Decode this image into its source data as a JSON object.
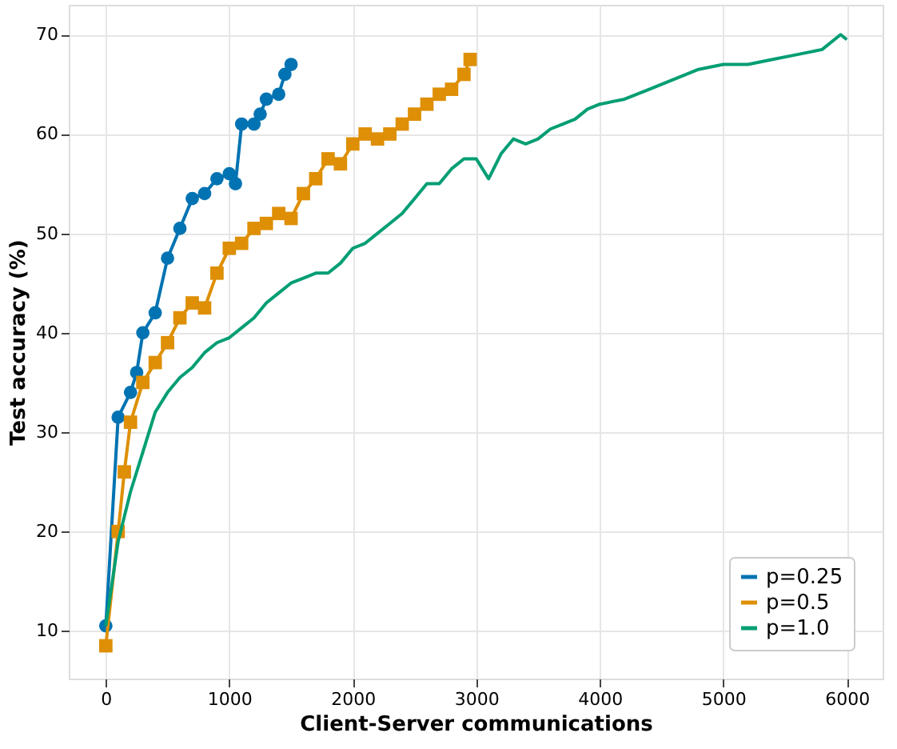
{
  "chart_data": {
    "type": "line",
    "xlabel": "Client-Server communications",
    "ylabel": "Test accuracy (%)",
    "xlim": [
      -300,
      6290
    ],
    "ylim": [
      5.2,
      73
    ],
    "xticks": [
      0,
      1000,
      2000,
      3000,
      4000,
      5000,
      6000
    ],
    "yticks": [
      10,
      20,
      30,
      40,
      50,
      60,
      70
    ],
    "grid": true,
    "legend": "bottom right",
    "series": [
      {
        "name": "p=0.25",
        "color": "#0173b2",
        "marker": "circle",
        "x": [
          0,
          100,
          200,
          250,
          300,
          400,
          500,
          600,
          700,
          800,
          900,
          1000,
          1050,
          1100,
          1200,
          1250,
          1300,
          1400,
          1450,
          1500
        ],
        "values": [
          10.5,
          31.5,
          34,
          36,
          40,
          42,
          47.5,
          50.5,
          53.5,
          54,
          55.5,
          56,
          55,
          61,
          61,
          62,
          63.5,
          64,
          66,
          67
        ]
      },
      {
        "name": "p=0.5",
        "color": "#de8f05",
        "marker": "square",
        "x": [
          0,
          100,
          150,
          200,
          300,
          400,
          500,
          600,
          700,
          800,
          900,
          1000,
          1100,
          1200,
          1300,
          1400,
          1500,
          1600,
          1700,
          1800,
          1900,
          2000,
          2100,
          2200,
          2300,
          2400,
          2500,
          2600,
          2700,
          2800,
          2900,
          2950
        ],
        "values": [
          8.5,
          20,
          26,
          31,
          35,
          37,
          39,
          41.5,
          43,
          42.5,
          46,
          48.5,
          49,
          50.5,
          51,
          52,
          51.5,
          54,
          55.5,
          57.5,
          57,
          59,
          60,
          59.5,
          60,
          61,
          62,
          63,
          64,
          64.5,
          66,
          67.5
        ]
      },
      {
        "name": "p=1.0",
        "color": "#029e73",
        "marker": "none",
        "x": [
          0,
          100,
          200,
          300,
          400,
          500,
          600,
          700,
          800,
          900,
          1000,
          1100,
          1200,
          1300,
          1400,
          1500,
          1600,
          1700,
          1800,
          1900,
          2000,
          2100,
          2200,
          2300,
          2400,
          2500,
          2600,
          2700,
          2800,
          2900,
          3000,
          3100,
          3200,
          3300,
          3400,
          3500,
          3600,
          3700,
          3800,
          3900,
          4000,
          4200,
          4400,
          4600,
          4800,
          5000,
          5200,
          5400,
          5600,
          5800,
          5950,
          6000
        ],
        "values": [
          10.5,
          19,
          24,
          28,
          32,
          34,
          35.5,
          36.5,
          38,
          39,
          39.5,
          40.5,
          41.5,
          43,
          44,
          45,
          45.5,
          46,
          46,
          47,
          48.5,
          49,
          50,
          51,
          52,
          53.5,
          55,
          55,
          56.5,
          57.5,
          57.5,
          55.5,
          58,
          59.5,
          59,
          59.5,
          60.5,
          61,
          61.5,
          62.5,
          63,
          63.5,
          64.5,
          65.5,
          66.5,
          67,
          67,
          67.5,
          68,
          68.5,
          70,
          69.5
        ]
      }
    ]
  }
}
